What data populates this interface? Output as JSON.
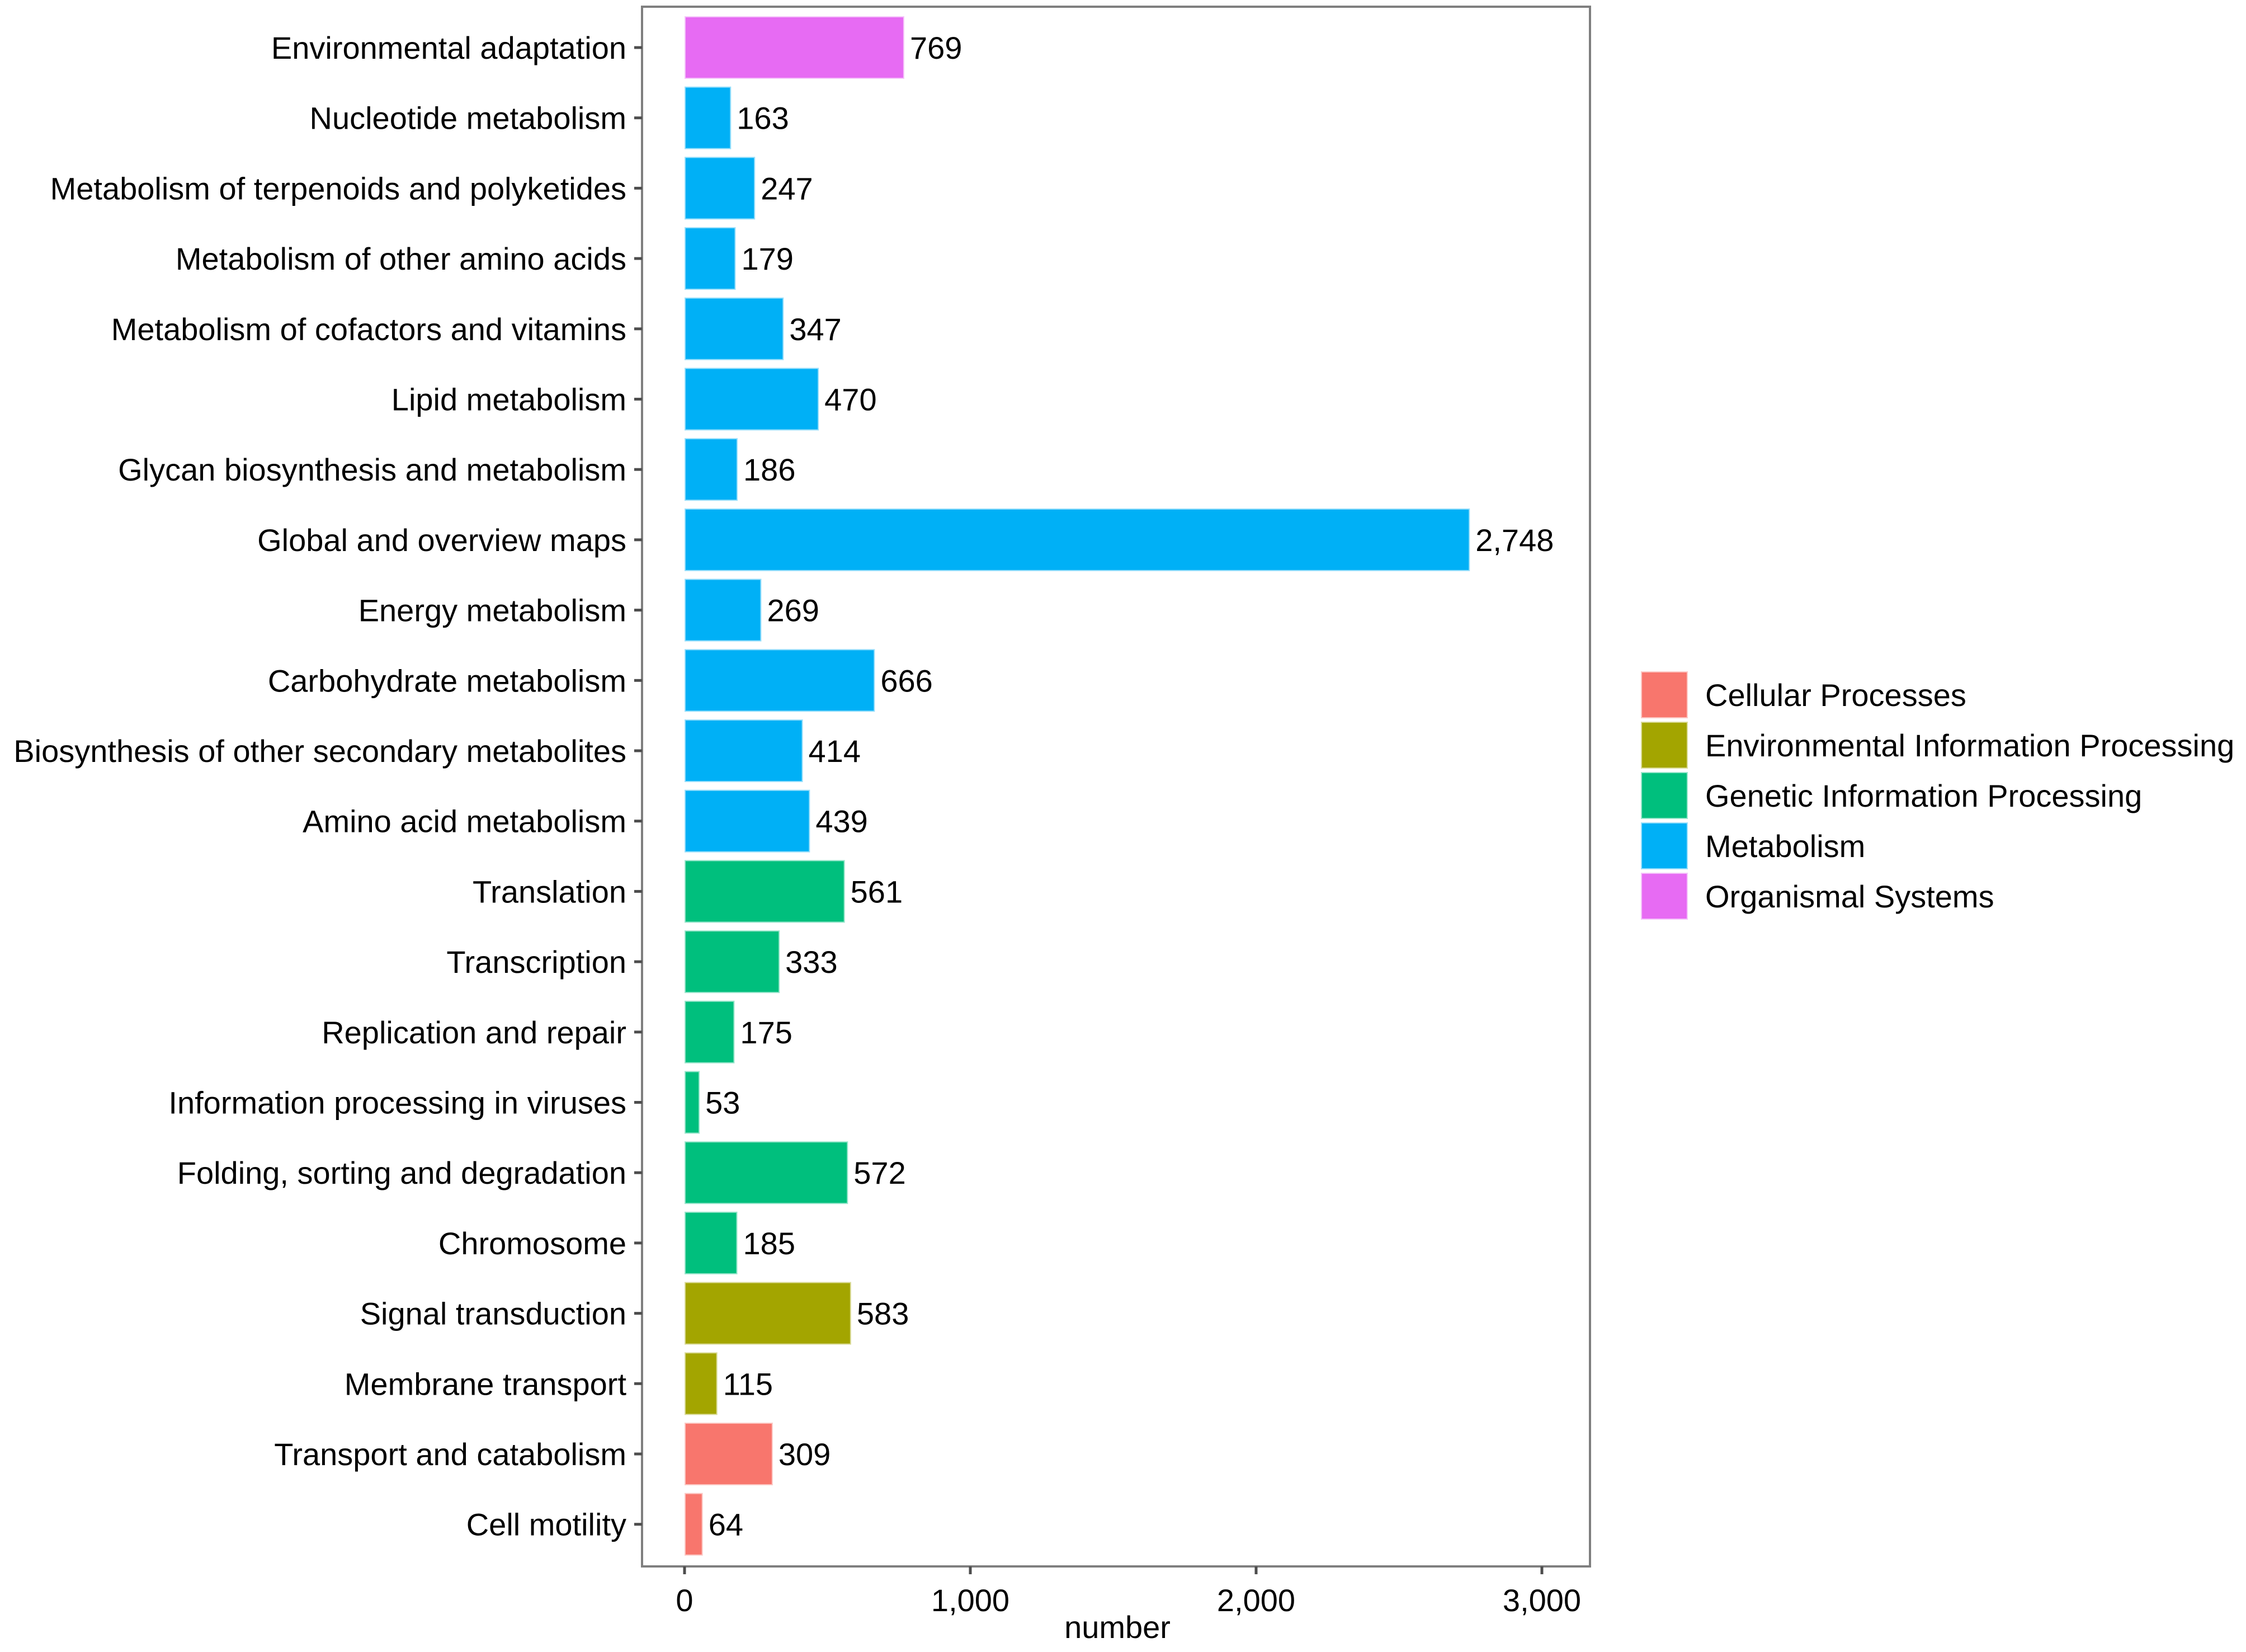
{
  "chart_data": {
    "type": "bar",
    "orientation": "horizontal",
    "title": "",
    "xlabel": "number",
    "ylabel": "",
    "xlim": [
      0,
      3000
    ],
    "xticks": [
      0,
      1000,
      2000,
      3000
    ],
    "xtick_labels": [
      "0",
      "1,000",
      "2,000",
      "3,000"
    ],
    "grid": false,
    "legend_position": "right",
    "legend": [
      {
        "name": "Cellular Processes",
        "color": "#F8766D"
      },
      {
        "name": "Environmental Information Processing",
        "color": "#A3A500"
      },
      {
        "name": "Genetic Information Processing",
        "color": "#00BF7D"
      },
      {
        "name": "Metabolism",
        "color": "#00B0F6"
      },
      {
        "name": "Organismal Systems",
        "color": "#E76BF3"
      }
    ],
    "bars": [
      {
        "category": "Environmental adaptation",
        "value": 769,
        "label": "769",
        "group": "Organismal Systems"
      },
      {
        "category": "Nucleotide metabolism",
        "value": 163,
        "label": "163",
        "group": "Metabolism"
      },
      {
        "category": "Metabolism of terpenoids and polyketides",
        "value": 247,
        "label": "247",
        "group": "Metabolism"
      },
      {
        "category": "Metabolism of other amino acids",
        "value": 179,
        "label": "179",
        "group": "Metabolism"
      },
      {
        "category": "Metabolism of cofactors and vitamins",
        "value": 347,
        "label": "347",
        "group": "Metabolism"
      },
      {
        "category": "Lipid metabolism",
        "value": 470,
        "label": "470",
        "group": "Metabolism"
      },
      {
        "category": "Glycan biosynthesis and metabolism",
        "value": 186,
        "label": "186",
        "group": "Metabolism"
      },
      {
        "category": "Global and overview maps",
        "value": 2748,
        "label": "2,748",
        "group": "Metabolism"
      },
      {
        "category": "Energy metabolism",
        "value": 269,
        "label": "269",
        "group": "Metabolism"
      },
      {
        "category": "Carbohydrate metabolism",
        "value": 666,
        "label": "666",
        "group": "Metabolism"
      },
      {
        "category": "Biosynthesis of other secondary metabolites",
        "value": 414,
        "label": "414",
        "group": "Metabolism"
      },
      {
        "category": "Amino acid metabolism",
        "value": 439,
        "label": "439",
        "group": "Metabolism"
      },
      {
        "category": "Translation",
        "value": 561,
        "label": "561",
        "group": "Genetic Information Processing"
      },
      {
        "category": "Transcription",
        "value": 333,
        "label": "333",
        "group": "Genetic Information Processing"
      },
      {
        "category": "Replication and repair",
        "value": 175,
        "label": "175",
        "group": "Genetic Information Processing"
      },
      {
        "category": "Information processing in viruses",
        "value": 53,
        "label": "53",
        "group": "Genetic Information Processing"
      },
      {
        "category": "Folding, sorting and degradation",
        "value": 572,
        "label": "572",
        "group": "Genetic Information Processing"
      },
      {
        "category": "Chromosome",
        "value": 185,
        "label": "185",
        "group": "Genetic Information Processing"
      },
      {
        "category": "Signal transduction",
        "value": 583,
        "label": "583",
        "group": "Environmental Information Processing"
      },
      {
        "category": "Membrane transport",
        "value": 115,
        "label": "115",
        "group": "Environmental Information Processing"
      },
      {
        "category": "Transport and catabolism",
        "value": 309,
        "label": "309",
        "group": "Cellular Processes"
      },
      {
        "category": "Cell motility",
        "value": 64,
        "label": "64",
        "group": "Cellular Processes"
      }
    ]
  }
}
